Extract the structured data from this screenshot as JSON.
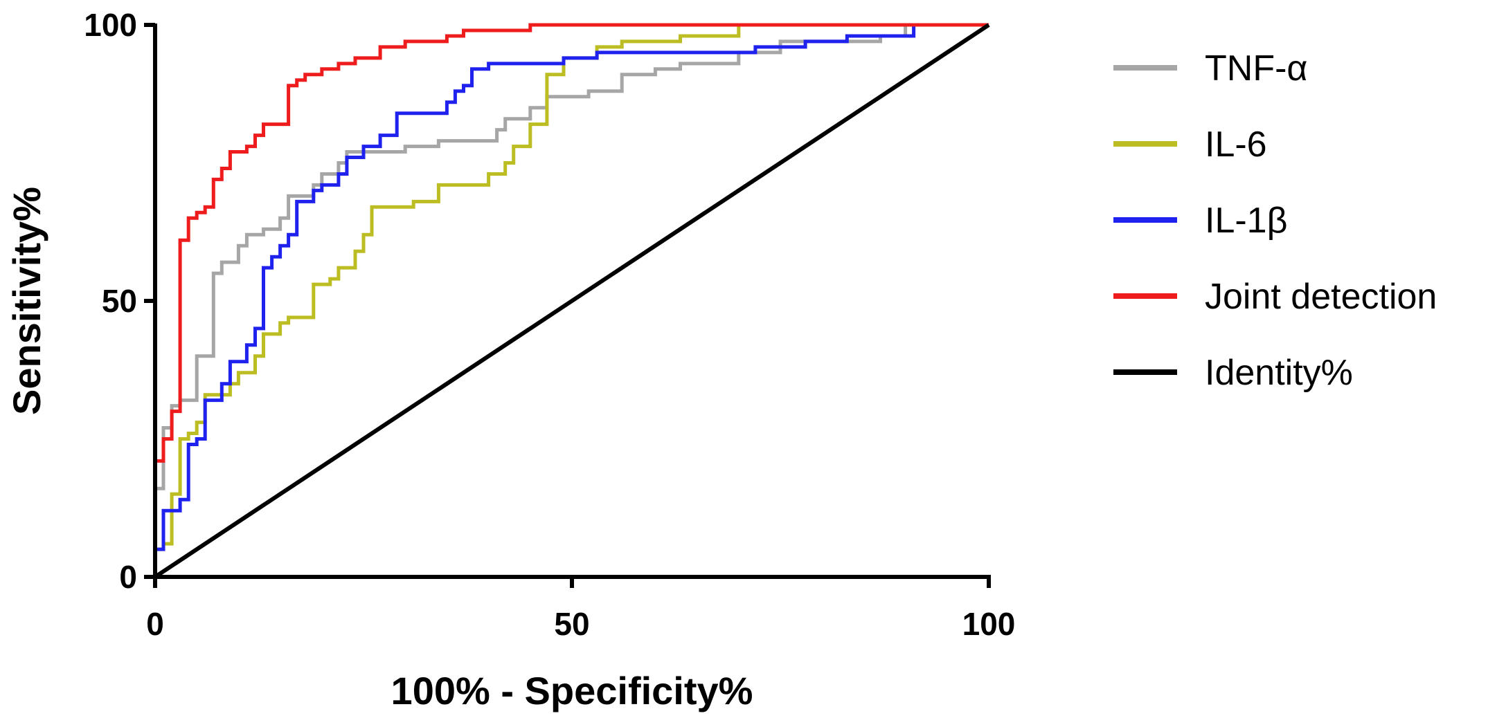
{
  "chart_data": {
    "type": "line",
    "xlabel": "100% - Specificity%",
    "ylabel": "Sensitivity%",
    "xlim": [
      0,
      100
    ],
    "ylim": [
      0,
      100
    ],
    "x_ticks": [
      "0",
      "50",
      "100"
    ],
    "y_ticks": [
      "0",
      "50",
      "100"
    ],
    "grid": false,
    "legend_position": "right",
    "series": [
      {
        "name": "TNF-α",
        "color": "#a6a6a6",
        "points": [
          [
            0,
            0
          ],
          [
            0,
            16
          ],
          [
            1,
            16
          ],
          [
            1,
            27
          ],
          [
            2,
            27
          ],
          [
            2,
            31
          ],
          [
            3,
            31
          ],
          [
            3,
            32
          ],
          [
            5,
            32
          ],
          [
            5,
            40
          ],
          [
            7,
            40
          ],
          [
            7,
            55
          ],
          [
            8,
            55
          ],
          [
            8,
            57
          ],
          [
            10,
            57
          ],
          [
            10,
            60
          ],
          [
            11,
            60
          ],
          [
            11,
            62
          ],
          [
            13,
            62
          ],
          [
            13,
            63
          ],
          [
            15,
            63
          ],
          [
            15,
            65
          ],
          [
            16,
            65
          ],
          [
            16,
            69
          ],
          [
            19,
            69
          ],
          [
            19,
            71
          ],
          [
            20,
            71
          ],
          [
            20,
            73
          ],
          [
            22,
            73
          ],
          [
            22,
            75
          ],
          [
            23,
            75
          ],
          [
            23,
            77
          ],
          [
            30,
            77
          ],
          [
            30,
            78
          ],
          [
            34,
            78
          ],
          [
            34,
            79
          ],
          [
            41,
            79
          ],
          [
            41,
            81
          ],
          [
            42,
            81
          ],
          [
            42,
            83
          ],
          [
            45,
            83
          ],
          [
            45,
            85
          ],
          [
            47,
            85
          ],
          [
            47,
            87
          ],
          [
            52,
            87
          ],
          [
            52,
            88
          ],
          [
            56,
            88
          ],
          [
            56,
            91
          ],
          [
            60,
            91
          ],
          [
            60,
            92
          ],
          [
            63,
            92
          ],
          [
            63,
            93
          ],
          [
            70,
            93
          ],
          [
            70,
            95
          ],
          [
            75,
            95
          ],
          [
            75,
            97
          ],
          [
            87,
            97
          ],
          [
            87,
            98
          ],
          [
            90,
            98
          ],
          [
            90,
            100
          ],
          [
            100,
            100
          ]
        ]
      },
      {
        "name": "IL-6",
        "color": "#bcbd22",
        "points": [
          [
            0,
            0
          ],
          [
            0,
            5
          ],
          [
            1,
            5
          ],
          [
            1,
            6
          ],
          [
            2,
            6
          ],
          [
            2,
            15
          ],
          [
            3,
            15
          ],
          [
            3,
            25
          ],
          [
            4,
            25
          ],
          [
            4,
            26
          ],
          [
            5,
            26
          ],
          [
            5,
            28
          ],
          [
            6,
            28
          ],
          [
            6,
            33
          ],
          [
            9,
            33
          ],
          [
            9,
            35
          ],
          [
            10,
            35
          ],
          [
            10,
            37
          ],
          [
            12,
            37
          ],
          [
            12,
            40
          ],
          [
            13,
            40
          ],
          [
            13,
            44
          ],
          [
            15,
            44
          ],
          [
            15,
            46
          ],
          [
            16,
            46
          ],
          [
            16,
            47
          ],
          [
            19,
            47
          ],
          [
            19,
            53
          ],
          [
            21,
            53
          ],
          [
            21,
            54
          ],
          [
            22,
            54
          ],
          [
            22,
            56
          ],
          [
            24,
            56
          ],
          [
            24,
            59
          ],
          [
            25,
            59
          ],
          [
            25,
            62
          ],
          [
            26,
            62
          ],
          [
            26,
            67
          ],
          [
            31,
            67
          ],
          [
            31,
            68
          ],
          [
            34,
            68
          ],
          [
            34,
            71
          ],
          [
            40,
            71
          ],
          [
            40,
            73
          ],
          [
            42,
            73
          ],
          [
            42,
            75
          ],
          [
            43,
            75
          ],
          [
            43,
            78
          ],
          [
            45,
            78
          ],
          [
            45,
            82
          ],
          [
            47,
            82
          ],
          [
            47,
            91
          ],
          [
            49,
            91
          ],
          [
            49,
            94
          ],
          [
            53,
            94
          ],
          [
            53,
            96
          ],
          [
            56,
            96
          ],
          [
            56,
            97
          ],
          [
            63,
            97
          ],
          [
            63,
            98
          ],
          [
            70,
            98
          ],
          [
            70,
            100
          ],
          [
            100,
            100
          ]
        ]
      },
      {
        "name": "IL-1β",
        "color": "#1f22ee",
        "points": [
          [
            0,
            0
          ],
          [
            0,
            5
          ],
          [
            1,
            5
          ],
          [
            1,
            12
          ],
          [
            3,
            12
          ],
          [
            3,
            14
          ],
          [
            4,
            14
          ],
          [
            4,
            24
          ],
          [
            5,
            24
          ],
          [
            5,
            25
          ],
          [
            6,
            25
          ],
          [
            6,
            32
          ],
          [
            8,
            32
          ],
          [
            8,
            35
          ],
          [
            9,
            35
          ],
          [
            9,
            39
          ],
          [
            11,
            39
          ],
          [
            11,
            42
          ],
          [
            12,
            42
          ],
          [
            12,
            45
          ],
          [
            13,
            45
          ],
          [
            13,
            56
          ],
          [
            14,
            56
          ],
          [
            14,
            58
          ],
          [
            15,
            58
          ],
          [
            15,
            60
          ],
          [
            16,
            60
          ],
          [
            16,
            62
          ],
          [
            17,
            62
          ],
          [
            17,
            68
          ],
          [
            19,
            68
          ],
          [
            19,
            70
          ],
          [
            20,
            70
          ],
          [
            20,
            71
          ],
          [
            22,
            71
          ],
          [
            22,
            73
          ],
          [
            23,
            73
          ],
          [
            23,
            76
          ],
          [
            25,
            76
          ],
          [
            25,
            78
          ],
          [
            27,
            78
          ],
          [
            27,
            80
          ],
          [
            29,
            80
          ],
          [
            29,
            84
          ],
          [
            35,
            84
          ],
          [
            35,
            86
          ],
          [
            36,
            86
          ],
          [
            36,
            88
          ],
          [
            37,
            88
          ],
          [
            37,
            89
          ],
          [
            38,
            89
          ],
          [
            38,
            92
          ],
          [
            40,
            92
          ],
          [
            40,
            93
          ],
          [
            49,
            93
          ],
          [
            49,
            94
          ],
          [
            53,
            94
          ],
          [
            53,
            95
          ],
          [
            72,
            95
          ],
          [
            72,
            96
          ],
          [
            78,
            96
          ],
          [
            78,
            97
          ],
          [
            83,
            97
          ],
          [
            83,
            98
          ],
          [
            91,
            98
          ],
          [
            91,
            100
          ],
          [
            100,
            100
          ]
        ]
      },
      {
        "name": "Joint detection",
        "color": "#ee1c1c",
        "points": [
          [
            0,
            0
          ],
          [
            0,
            21
          ],
          [
            1,
            21
          ],
          [
            1,
            25
          ],
          [
            2,
            25
          ],
          [
            2,
            30
          ],
          [
            3,
            30
          ],
          [
            3,
            61
          ],
          [
            4,
            61
          ],
          [
            4,
            65
          ],
          [
            5,
            65
          ],
          [
            5,
            66
          ],
          [
            6,
            66
          ],
          [
            6,
            67
          ],
          [
            7,
            67
          ],
          [
            7,
            72
          ],
          [
            8,
            72
          ],
          [
            8,
            74
          ],
          [
            9,
            74
          ],
          [
            9,
            77
          ],
          [
            11,
            77
          ],
          [
            11,
            78
          ],
          [
            12,
            78
          ],
          [
            12,
            80
          ],
          [
            13,
            80
          ],
          [
            13,
            82
          ],
          [
            16,
            82
          ],
          [
            16,
            89
          ],
          [
            17,
            89
          ],
          [
            17,
            90
          ],
          [
            18,
            90
          ],
          [
            18,
            91
          ],
          [
            20,
            91
          ],
          [
            20,
            92
          ],
          [
            22,
            92
          ],
          [
            22,
            93
          ],
          [
            24,
            93
          ],
          [
            24,
            94
          ],
          [
            27,
            94
          ],
          [
            27,
            96
          ],
          [
            30,
            96
          ],
          [
            30,
            97
          ],
          [
            35,
            97
          ],
          [
            35,
            98
          ],
          [
            37,
            98
          ],
          [
            37,
            99
          ],
          [
            45,
            99
          ],
          [
            45,
            100
          ],
          [
            100,
            100
          ]
        ]
      },
      {
        "name": "Identity%",
        "color": "#000000",
        "points": [
          [
            0,
            0
          ],
          [
            100,
            100
          ]
        ]
      }
    ]
  }
}
